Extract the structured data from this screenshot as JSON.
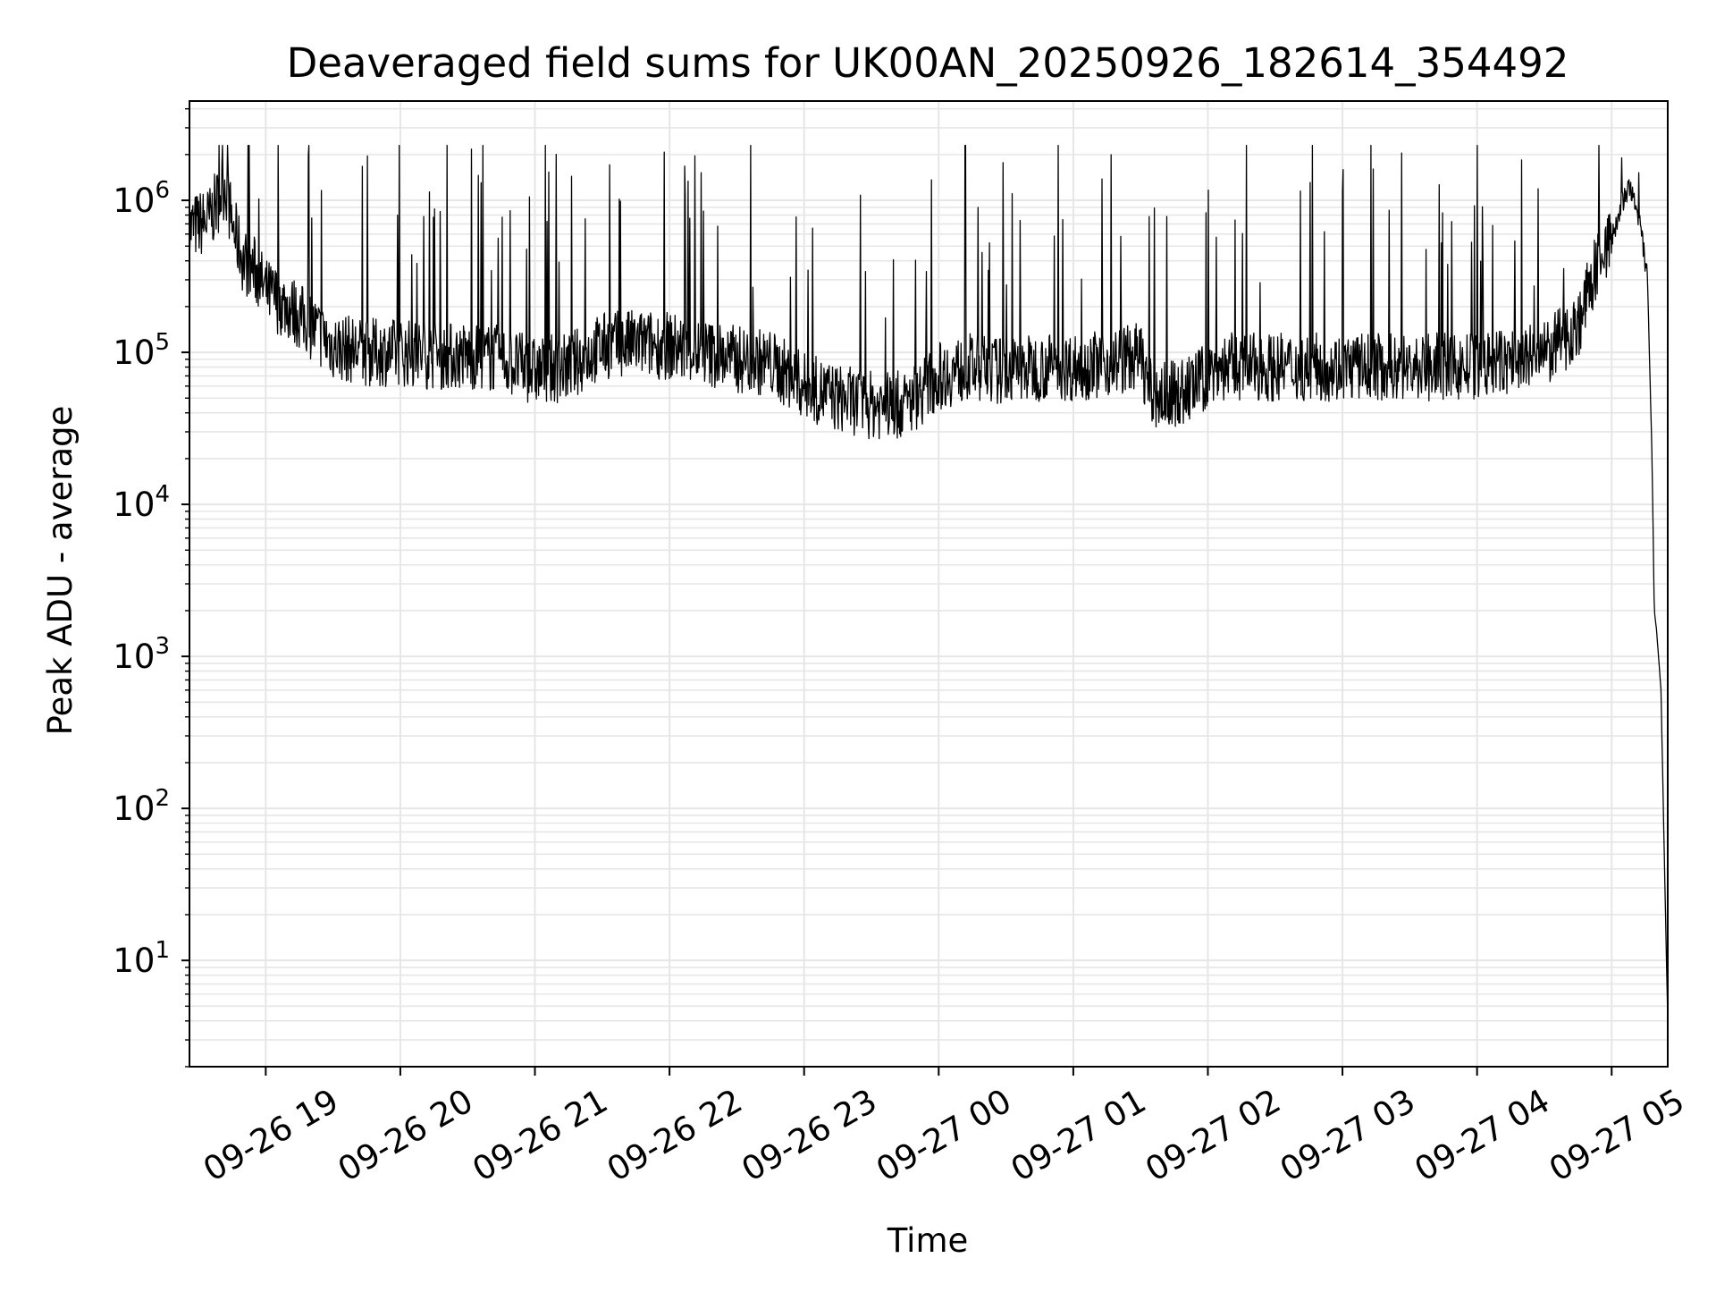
{
  "chart_data": {
    "type": "line",
    "title": "Deaveraged field sums for UK00AN_20250926_182614_354492",
    "xlabel": "Time",
    "ylabel": "Peak ADU - average",
    "y_scale": "log",
    "ylim": [
      2,
      4500000
    ],
    "xlim": [
      "2025-09-26 18:26",
      "2025-09-27 05:25"
    ],
    "x_ticks": [
      {
        "value": "2025-09-26 19:00",
        "label": "09-26 19"
      },
      {
        "value": "2025-09-26 20:00",
        "label": "09-26 20"
      },
      {
        "value": "2025-09-26 21:00",
        "label": "09-26 21"
      },
      {
        "value": "2025-09-26 22:00",
        "label": "09-26 22"
      },
      {
        "value": "2025-09-26 23:00",
        "label": "09-26 23"
      },
      {
        "value": "2025-09-27 00:00",
        "label": "09-27 00"
      },
      {
        "value": "2025-09-27 01:00",
        "label": "09-27 01"
      },
      {
        "value": "2025-09-27 02:00",
        "label": "09-27 02"
      },
      {
        "value": "2025-09-27 03:00",
        "label": "09-27 03"
      },
      {
        "value": "2025-09-27 04:00",
        "label": "09-27 04"
      },
      {
        "value": "2025-09-27 05:00",
        "label": "09-27 05"
      }
    ],
    "y_ticks": [
      {
        "value": 10,
        "base": "10",
        "exp": "1"
      },
      {
        "value": 100,
        "base": "10",
        "exp": "2"
      },
      {
        "value": 1000,
        "base": "10",
        "exp": "3"
      },
      {
        "value": 10000,
        "base": "10",
        "exp": "4"
      },
      {
        "value": 100000,
        "base": "10",
        "exp": "5"
      },
      {
        "value": 1000000,
        "base": "10",
        "exp": "6"
      }
    ],
    "grid": true,
    "grid_minor": true,
    "line_color": "#000000",
    "grid_color": "#e6e6e6",
    "series": [
      {
        "points": [
          [
            "2025-09-26 18:26",
            650000
          ],
          [
            "2025-09-26 18:35",
            750000
          ],
          [
            "2025-09-26 18:42",
            1300000
          ],
          [
            "2025-09-26 18:45",
            700000
          ],
          [
            "2025-09-26 18:50",
            400000
          ],
          [
            "2025-09-26 18:55",
            350000
          ],
          [
            "2025-09-26 19:00",
            250000
          ],
          [
            "2025-09-26 19:10",
            200000
          ],
          [
            "2025-09-26 19:20",
            150000
          ],
          [
            "2025-09-26 19:30",
            110000
          ],
          [
            "2025-09-26 19:45",
            100000
          ],
          [
            "2025-09-26 20:00",
            100000
          ],
          [
            "2025-09-26 20:15",
            95000
          ],
          [
            "2025-09-26 20:30",
            95000
          ],
          [
            "2025-09-26 20:45",
            90000
          ],
          [
            "2025-09-26 21:00",
            75000
          ],
          [
            "2025-09-26 21:15",
            80000
          ],
          [
            "2025-09-26 21:30",
            110000
          ],
          [
            "2025-09-26 21:45",
            115000
          ],
          [
            "2025-09-26 22:00",
            110000
          ],
          [
            "2025-09-26 22:15",
            100000
          ],
          [
            "2025-09-26 22:30",
            90000
          ],
          [
            "2025-09-26 22:45",
            85000
          ],
          [
            "2025-09-26 23:00",
            60000
          ],
          [
            "2025-09-26 23:15",
            50000
          ],
          [
            "2025-09-26 23:30",
            45000
          ],
          [
            "2025-09-26 23:45",
            45000
          ],
          [
            "2025-09-27 00:00",
            70000
          ],
          [
            "2025-09-27 00:15",
            80000
          ],
          [
            "2025-09-27 00:30",
            75000
          ],
          [
            "2025-09-27 00:45",
            80000
          ],
          [
            "2025-09-27 01:00",
            80000
          ],
          [
            "2025-09-27 01:15",
            85000
          ],
          [
            "2025-09-27 01:30",
            95000
          ],
          [
            "2025-09-27 01:35",
            50000
          ],
          [
            "2025-09-27 01:50",
            55000
          ],
          [
            "2025-09-27 02:05",
            80000
          ],
          [
            "2025-09-27 02:30",
            80000
          ],
          [
            "2025-09-27 03:00",
            80000
          ],
          [
            "2025-09-27 03:30",
            80000
          ],
          [
            "2025-09-27 04:00",
            80000
          ],
          [
            "2025-09-27 04:30",
            95000
          ],
          [
            "2025-09-27 04:45",
            150000
          ],
          [
            "2025-09-27 04:55",
            450000
          ],
          [
            "2025-09-27 05:00",
            550000
          ],
          [
            "2025-09-27 05:05",
            1000000
          ],
          [
            "2025-09-27 05:08",
            1200000
          ],
          [
            "2025-09-27 05:12",
            800000
          ],
          [
            "2025-09-27 05:16",
            300000
          ],
          [
            "2025-09-27 05:18",
            20000
          ],
          [
            "2025-09-27 05:19",
            2000
          ],
          [
            "2025-09-27 05:20",
            1500
          ],
          [
            "2025-09-27 05:22",
            600
          ],
          [
            "2025-09-27 05:24",
            20
          ],
          [
            "2025-09-27 05:25",
            4
          ]
        ]
      }
    ]
  }
}
